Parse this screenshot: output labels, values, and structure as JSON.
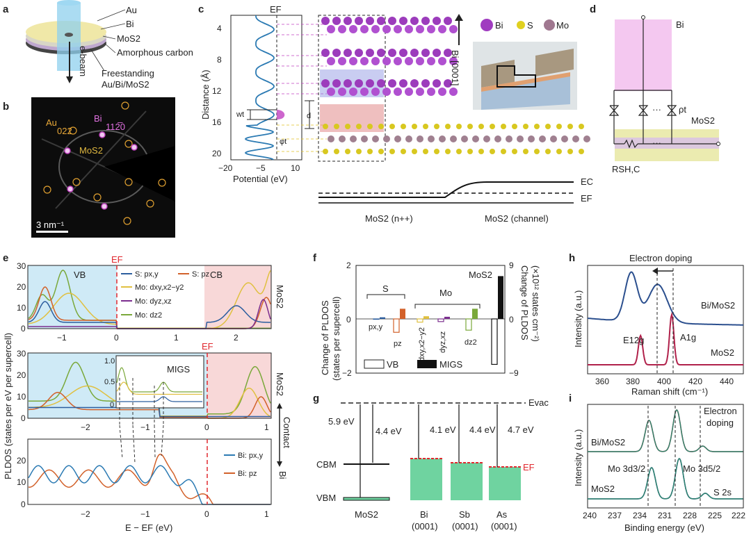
{
  "panels": {
    "a": {
      "label": "a",
      "layers": [
        "Au",
        "Bi",
        "MoS2",
        "Amorphous carbon"
      ],
      "freestanding": "Freestanding",
      "freestanding2": "Au/Bi/MoS2",
      "ebeam": "e-beam"
    },
    "b": {
      "label": "b",
      "au": "Au",
      "au_idx": "022",
      "bi": "Bi",
      "bi_idx": "112̅0",
      "mos2": "MoS2",
      "scale": "3 nm⁻¹"
    },
    "c": {
      "label": "c",
      "ef": "EF",
      "ylabel": "Distance (Å)",
      "xlabel": "Potential (eV)",
      "yticks": [
        "4",
        "8",
        "12",
        "16",
        "20"
      ],
      "xticks": [
        "−20",
        "−5",
        "10"
      ],
      "wt": "wt",
      "phit": "φt",
      "d": "d",
      "legend": [
        "Bi",
        "S",
        "Mo"
      ],
      "bi_dir": "Bi [0001]",
      "band": {
        "ec": "EC",
        "ef": "EF",
        "left": "MoS2 (n++)",
        "right": "MoS2 (channel)"
      }
    },
    "d": {
      "label": "d",
      "bi": "Bi",
      "mos2": "MoS2",
      "rho": "ρt",
      "rsh": "RSH,C",
      "dots": "···"
    },
    "e": {
      "label": "e",
      "ylabel": "PLDOS (states per eV per supercell)",
      "xlabel": "E − EF (eV)",
      "ef": "EF",
      "vb": "VB",
      "cb": "CB",
      "migs": "MIGS",
      "side1": "MoS2",
      "side2": "MoS2",
      "side_contact": "Contact",
      "side_bi": "Bi",
      "legend1": [
        "S: px,y",
        "S: pz",
        "Mo: dxy,x2−y2",
        "Mo: dyz,xz",
        "Mo: dz2"
      ],
      "legend3": [
        "Bi: px,y",
        "Bi: pz"
      ],
      "x1ticks": [
        "−1",
        "0",
        "1",
        "2"
      ],
      "x2ticks": [
        "−2",
        "−1",
        "0",
        "1"
      ],
      "y1ticks": [
        "0",
        "10",
        "20",
        "30"
      ],
      "insetticks": [
        "0",
        "0.5",
        "1.0"
      ]
    },
    "f": {
      "label": "f",
      "ylabel": "Change of PLDOS",
      "ylabel2": "(states per supercell)",
      "y2label": "Change of PLDOS",
      "y2label2": "(×10¹² states cm⁻²)",
      "yticks": [
        "2",
        "0",
        "−2"
      ],
      "y2ticks": [
        "9",
        "0",
        "−9"
      ],
      "s": "S",
      "mo": "Mo",
      "mos2": "MoS2",
      "vb": "VB",
      "migs": "MIGS",
      "cats": [
        "px,y",
        "pz",
        "dxy,x2−y2",
        "dyz,xz",
        "dz2"
      ]
    },
    "g": {
      "label": "g",
      "evac": "Evac",
      "ef": "EF",
      "cbm": "CBM",
      "vbm": "VBM",
      "gaps": [
        "5.9 eV",
        "4.4 eV",
        "4.1 eV",
        "4.4 eV",
        "4.7 eV"
      ],
      "metals": [
        "MoS2",
        "Bi",
        "Sb",
        "As"
      ],
      "facets": [
        "(0001)",
        "(0001)",
        "(0001)"
      ]
    },
    "h": {
      "label": "h",
      "title": "Electron doping",
      "xlabel": "Raman shift (cm⁻¹)",
      "ylabel": "Intensity (a.u.)",
      "xticks": [
        "360",
        "380",
        "400",
        "420",
        "440"
      ],
      "s1": "Bi/MoS2",
      "s2": "MoS2",
      "p1": "E12g",
      "p2": "A1g"
    },
    "i": {
      "label": "i",
      "xlabel": "Binding energy (eV)",
      "ylabel": "Intensity (a.u.)",
      "xticks": [
        "240",
        "237",
        "234",
        "231",
        "228",
        "225",
        "222"
      ],
      "s1": "Bi/MoS2",
      "s2": "MoS2",
      "note1": "Electron",
      "note2": "doping",
      "mo32": "Mo 3d3/2",
      "mo52": "Mo 3d5/2",
      "s2s": "S 2s"
    }
  },
  "colors": {
    "blue": "#2b5d9e",
    "orange": "#d2612a",
    "olive": "#9aa43a",
    "purple": "#7b2d8e",
    "green_fill": "#6fd3a0",
    "red": "#e0282e",
    "pink": "#f2c8ec",
    "crimson": "#b0204a",
    "teal": "#2e8a6c"
  },
  "chart_data": [
    {
      "type": "line",
      "panel": "c",
      "xlabel": "Potential (eV)",
      "ylabel": "Distance (Å)",
      "xlim": [
        -20,
        10
      ],
      "ylim": [
        3,
        21
      ]
    },
    {
      "type": "line",
      "panel": "e-top",
      "xlabel": "",
      "ylabel": "PLDOS (states per eV per supercell)",
      "xlim": [
        -1.3,
        2.7
      ],
      "ylim": [
        0,
        30
      ],
      "series": [
        {
          "name": "S: px,y"
        },
        {
          "name": "S: pz"
        },
        {
          "name": "Mo: dxy,x2−y2"
        },
        {
          "name": "Mo: dyz,xz"
        },
        {
          "name": "Mo: dz2"
        }
      ]
    },
    {
      "type": "line",
      "panel": "e-bottom",
      "xlabel": "E − EF (eV)",
      "ylabel": "",
      "xlim": [
        -2.9,
        1.1
      ],
      "ylim": [
        0,
        30
      ],
      "series": [
        {
          "name": "Bi: px,y"
        },
        {
          "name": "Bi: pz"
        }
      ]
    },
    {
      "type": "bar",
      "panel": "f",
      "categories": [
        "px,y",
        "pz",
        "dxy,x2−y2",
        "dyz,xz",
        "dz2",
        "MoS2"
      ],
      "ylim": [
        -2,
        2
      ],
      "series": [
        {
          "name": "VB",
          "values": [
            0.0,
            -0.5,
            -0.12,
            -0.1,
            -0.42,
            -1.7
          ]
        },
        {
          "name": "MIGS",
          "values": [
            0.06,
            0.38,
            0.1,
            0.08,
            0.38,
            1.6
          ]
        }
      ]
    },
    {
      "type": "bar",
      "panel": "g",
      "categories": [
        "Bi",
        "Sb",
        "As"
      ],
      "values": [
        4.1,
        4.4,
        4.7
      ]
    },
    {
      "type": "line",
      "panel": "h",
      "xlabel": "Raman shift (cm⁻¹)",
      "ylabel": "Intensity (a.u.)",
      "xlim": [
        350,
        450
      ],
      "series": [
        {
          "name": "Bi/MoS2"
        },
        {
          "name": "MoS2"
        }
      ],
      "peaks": [
        {
          "name": "E12g",
          "x": 384
        },
        {
          "name": "A1g",
          "x": 404
        }
      ]
    },
    {
      "type": "line",
      "panel": "i",
      "xlabel": "Binding energy (eV)",
      "ylabel": "Intensity (a.u.)",
      "xlim": [
        240,
        222
      ],
      "series": [
        {
          "name": "Bi/MoS2"
        },
        {
          "name": "MoS2"
        }
      ],
      "peaks": [
        {
          "name": "Mo 3d3/2",
          "x": 232.6
        },
        {
          "name": "Mo 3d5/2",
          "x": 229.4
        },
        {
          "name": "S 2s",
          "x": 226.6
        }
      ]
    }
  ]
}
